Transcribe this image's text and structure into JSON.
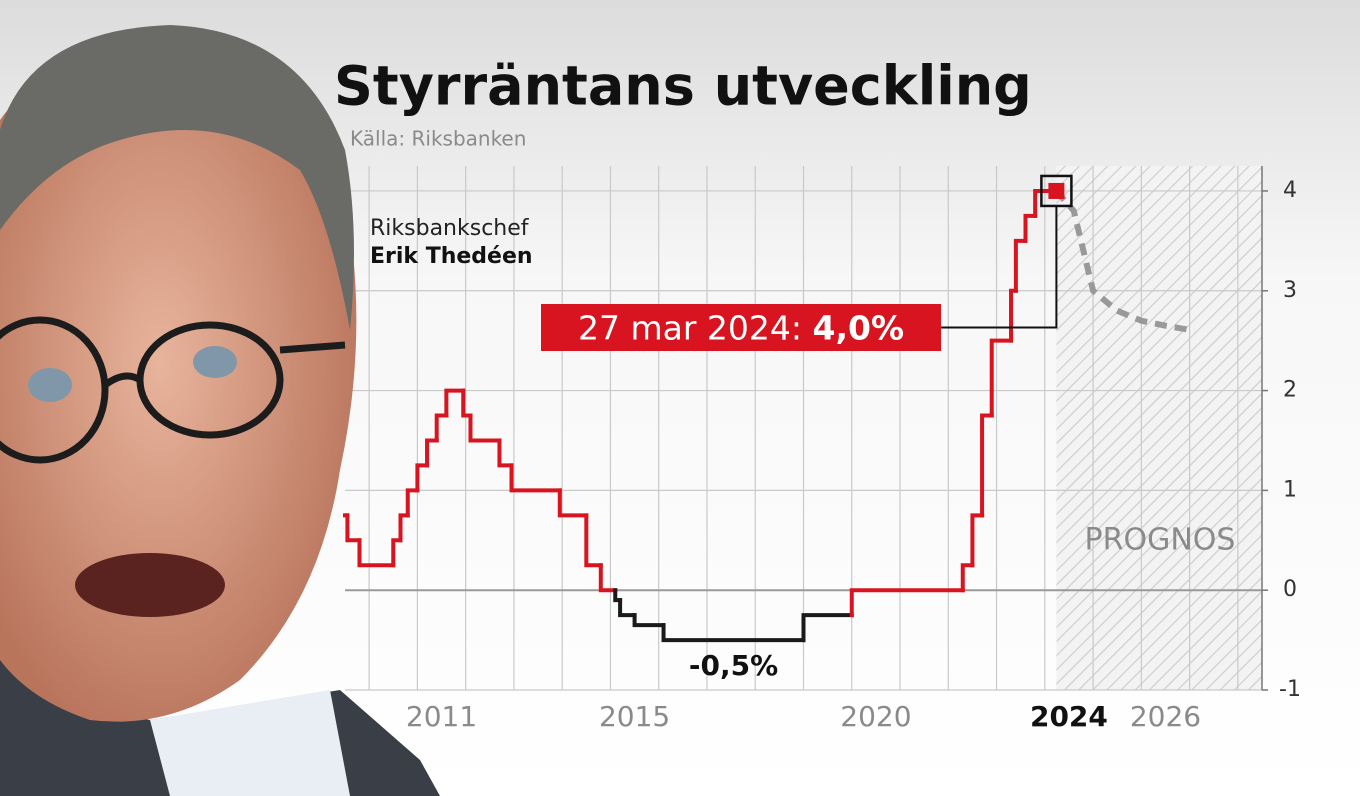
{
  "chart_data": {
    "type": "step-line",
    "title": "Styrräntans utveckling",
    "source": "Källa: Riksbanken",
    "photo_caption": {
      "role": "Riksbankschef",
      "name": "Erik Thedéen"
    },
    "x": [
      2009.5,
      2009.55,
      2009.8,
      2010.5,
      2010.65,
      2010.8,
      2011.0,
      2011.2,
      2011.4,
      2011.6,
      2011.95,
      2012.1,
      2012.7,
      2012.95,
      2013.95,
      2014.5,
      2014.8,
      2015.1,
      2015.2,
      2015.5,
      2016.1,
      2019.0,
      2020.0,
      2022.3,
      2022.5,
      2022.7,
      2022.9,
      2023.3,
      2023.4,
      2023.6,
      2023.8,
      2024.24
    ],
    "values": [
      0.75,
      0.5,
      0.25,
      0.5,
      0.75,
      1.0,
      1.25,
      1.5,
      1.75,
      2.0,
      1.75,
      1.5,
      1.25,
      1.0,
      0.75,
      0.25,
      0.0,
      -0.1,
      -0.25,
      -0.35,
      -0.5,
      -0.25,
      0.0,
      0.25,
      0.75,
      1.75,
      2.5,
      3.0,
      3.5,
      3.75,
      4.0,
      4.0
    ],
    "color_positive": "#d7141f",
    "color_negative": "#1a1a1a",
    "forecast": {
      "label": "PROGNOS",
      "color": "#999999",
      "x": [
        2024.24,
        2024.6,
        2025.0,
        2025.5,
        2026.0,
        2026.5,
        2027.1
      ],
      "values": [
        4.0,
        3.8,
        3.0,
        2.8,
        2.7,
        2.65,
        2.6
      ]
    },
    "callout": {
      "date_label": "27 mar 2024:",
      "value_label": "4,0%"
    },
    "min_label": "-0,5%",
    "xlim": [
      2009.5,
      2028.5
    ],
    "xticks": [
      2011,
      2015,
      2020,
      2024,
      2026
    ],
    "ylim": [
      -1,
      4.25
    ],
    "yticks": [
      4,
      3,
      2,
      1,
      0,
      -1
    ],
    "grid": true
  }
}
